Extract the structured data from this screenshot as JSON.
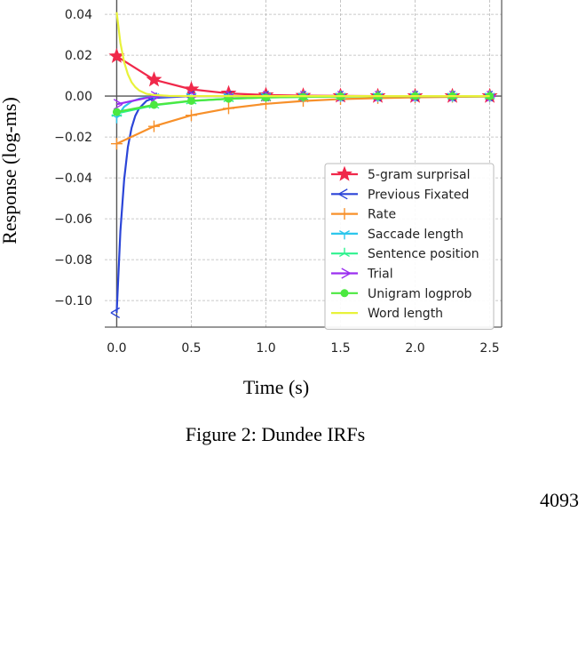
{
  "figure": {
    "caption": "Figure 2: Dundee IRFs",
    "page_number": "4093"
  },
  "chart_data": {
    "type": "line",
    "xlabel": "Time (s)",
    "ylabel": "Response (log-ms)",
    "xlim": [
      -0.08,
      2.58
    ],
    "ylim": [
      -0.113,
      0.047
    ],
    "x_ticks": [
      0.0,
      0.5,
      1.0,
      1.5,
      2.0,
      2.5
    ],
    "x_tick_labels": [
      "0.0",
      "0.5",
      "1.0",
      "1.5",
      "2.0",
      "2.5"
    ],
    "y_ticks": [
      0.04,
      0.02,
      0.0,
      -0.02,
      -0.04,
      -0.06,
      -0.08,
      -0.1
    ],
    "y_tick_labels": [
      "0.04",
      "0.02",
      "0.00",
      "−0.02",
      "−0.04",
      "−0.06",
      "−0.08",
      "−0.10"
    ],
    "grid": true,
    "legend_position": "lower-right",
    "series": [
      {
        "name": "5-gram surprisal",
        "color": "#f0284a",
        "marker": "star",
        "x": [
          0.0,
          0.25,
          0.5,
          0.75,
          1.0,
          1.25,
          1.5,
          1.75,
          2.0,
          2.25,
          2.5
        ],
        "y": [
          0.0195,
          0.008,
          0.0033,
          0.0013,
          0.0005,
          0.0002,
          0.0001,
          0.0,
          0.0,
          0.0,
          0.0
        ]
      },
      {
        "name": "Previous Fixated",
        "color": "#2b45d8",
        "marker": "tri-left",
        "x": [
          0.0,
          0.025,
          0.05,
          0.075,
          0.1,
          0.125,
          0.15,
          0.2,
          0.25,
          0.5,
          0.75,
          1.0,
          1.25,
          1.5,
          1.75,
          2.0,
          2.25,
          2.5
        ],
        "y": [
          -0.106,
          -0.066,
          -0.041,
          -0.025,
          -0.0155,
          -0.0096,
          -0.006,
          -0.0023,
          -0.0009,
          0.0,
          0.0,
          0.0,
          0.0,
          0.0,
          0.0,
          0.0,
          0.0,
          0.0
        ]
      },
      {
        "name": "Rate",
        "color": "#f7902a",
        "marker": "plus",
        "x": [
          0.0,
          0.25,
          0.5,
          0.75,
          1.0,
          1.25,
          1.5,
          1.75,
          2.0,
          2.25,
          2.5
        ],
        "y": [
          -0.0233,
          -0.0148,
          -0.0094,
          -0.006,
          -0.0038,
          -0.0024,
          -0.0015,
          -0.001,
          -0.0006,
          -0.0004,
          -0.0002
        ]
      },
      {
        "name": "Saccade length",
        "color": "#2cc6ec",
        "marker": "tri-down",
        "x": [
          0.0,
          0.05,
          0.1,
          0.15,
          0.2,
          0.25,
          0.5,
          0.75,
          1.0,
          1.25,
          1.5,
          1.75,
          2.0,
          2.25,
          2.5
        ],
        "y": [
          -0.0105,
          -0.0052,
          -0.0026,
          -0.0013,
          -0.0006,
          -0.0003,
          0.0,
          0.0,
          0.0,
          0.0,
          0.0,
          0.0,
          0.0,
          0.0,
          0.0
        ]
      },
      {
        "name": "Sentence position",
        "color": "#2ef28e",
        "marker": "tri-up",
        "x": [
          0.0,
          0.25,
          0.5,
          0.75,
          1.0,
          1.25,
          1.5,
          1.75,
          2.0,
          2.25,
          2.5
        ],
        "y": [
          -0.0085,
          -0.0045,
          -0.0024,
          -0.0013,
          -0.0007,
          -0.0004,
          -0.0002,
          -0.0001,
          0.0,
          0.0,
          0.0
        ]
      },
      {
        "name": "Trial",
        "color": "#9a2ef0",
        "marker": "tri-right",
        "x": [
          0.0,
          0.25,
          0.5,
          0.75,
          1.0,
          1.25,
          1.5,
          1.75,
          2.0,
          2.25,
          2.5
        ],
        "y": [
          -0.004,
          -0.0001,
          0.0,
          0.0,
          0.0,
          0.0,
          0.0,
          0.0,
          0.0,
          0.0,
          0.0
        ]
      },
      {
        "name": "Unigram logprob",
        "color": "#4be840",
        "marker": "circle",
        "x": [
          0.0,
          0.25,
          0.5,
          0.75,
          1.0,
          1.25,
          1.5,
          1.75,
          2.0,
          2.25,
          2.5
        ],
        "y": [
          -0.0078,
          -0.0043,
          -0.0023,
          -0.0013,
          -0.0007,
          -0.0004,
          -0.0002,
          -0.0001,
          0.0,
          0.0,
          0.0
        ]
      },
      {
        "name": "Word length",
        "color": "#e8f23a",
        "marker": "none",
        "x": [
          0.0,
          0.025,
          0.05,
          0.075,
          0.1,
          0.125,
          0.15,
          0.2,
          0.25,
          0.35,
          0.5,
          1.0,
          1.5,
          2.0,
          2.5
        ],
        "y": [
          0.041,
          0.026,
          0.0167,
          0.0107,
          0.0068,
          0.0044,
          0.0028,
          0.0011,
          0.0005,
          0.0001,
          0.0,
          0.0,
          0.0,
          0.0,
          0.0
        ]
      }
    ]
  }
}
